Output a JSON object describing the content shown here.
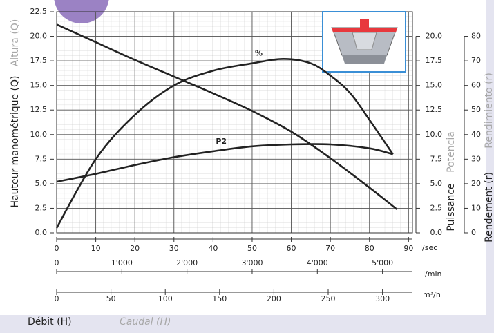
{
  "chart_data": {
    "type": "line",
    "xlim": [
      0,
      91
    ],
    "xticks": [
      0,
      10,
      20,
      30,
      40,
      50,
      60,
      70,
      80,
      90
    ],
    "x_unit": "l/sec",
    "x2": {
      "unit": "l/min",
      "lim": [
        0,
        5460
      ],
      "ticks": [
        0,
        {
          "value": 1000,
          "label": "1'000"
        },
        {
          "value": 2000,
          "label": "2'000"
        },
        {
          "value": 3000,
          "label": "3'000"
        },
        {
          "value": 4000,
          "label": "4'000"
        },
        {
          "value": 5000,
          "label": "5'000"
        }
      ]
    },
    "x3": {
      "unit": "m³/h",
      "lim": [
        0,
        327.6
      ],
      "ticks": [
        0,
        50,
        100,
        150,
        200,
        250,
        300
      ]
    },
    "x_label": "Débit (H)",
    "x_label_alt": "Caudal (H)",
    "ylim": [
      0,
      22.5
    ],
    "yticks": [
      {
        "value": 0,
        "label": "0.0"
      },
      2.5,
      {
        "value": 5,
        "label": "5.0"
      },
      7.5,
      {
        "value": 10,
        "label": "10.0"
      },
      12.5,
      {
        "value": 15,
        "label": "15.0"
      },
      17.5,
      {
        "value": 20,
        "label": "20.0"
      },
      22.5
    ],
    "y_label": "Hauteur manométrique (Q)",
    "y_label_alt": "Altura (Q)",
    "y2lim": [
      0,
      22.5
    ],
    "y2ticks": [
      {
        "value": 0,
        "label": "0.0"
      },
      2.5,
      {
        "value": 5,
        "label": "5.0"
      },
      7.5,
      {
        "value": 10,
        "label": "10.0"
      },
      12.5,
      {
        "value": 15,
        "label": "15.0"
      },
      17.5,
      {
        "value": 20,
        "label": "20.0"
      }
    ],
    "y2_label": "Puissance",
    "y2_label_alt": "Potencia",
    "y3lim": [
      0,
      90
    ],
    "y3ticks": [
      0,
      10,
      20,
      30,
      40,
      50,
      60,
      70,
      80
    ],
    "y3_label": "Rendement (r)",
    "y3_label_alt": "Rendimiento (r)",
    "grid": true,
    "series": [
      {
        "color": "#222222",
        "axis": "y",
        "x": [
          0,
          10,
          20,
          30,
          40,
          50,
          60,
          70,
          80,
          87
        ],
        "values": [
          21.2,
          19.4,
          17.6,
          15.9,
          14.2,
          12.4,
          10.3,
          7.6,
          4.6,
          2.4
        ]
      },
      {
        "name": "%",
        "color": "#222222",
        "axis": "y3",
        "x": [
          0,
          10,
          20,
          30,
          40,
          50,
          58,
          65,
          70,
          75,
          80,
          86
        ],
        "values": [
          2,
          30,
          48,
          60,
          66,
          69,
          70.8,
          69,
          64,
          57,
          46,
          32
        ]
      },
      {
        "name": "P2",
        "color": "#222222",
        "axis": "y2",
        "x": [
          0,
          10,
          20,
          30,
          40,
          50,
          60,
          70,
          80,
          86
        ],
        "values": [
          5.2,
          6.0,
          6.9,
          7.7,
          8.3,
          8.8,
          9.0,
          9.0,
          8.6,
          8.0
        ]
      }
    ]
  }
}
